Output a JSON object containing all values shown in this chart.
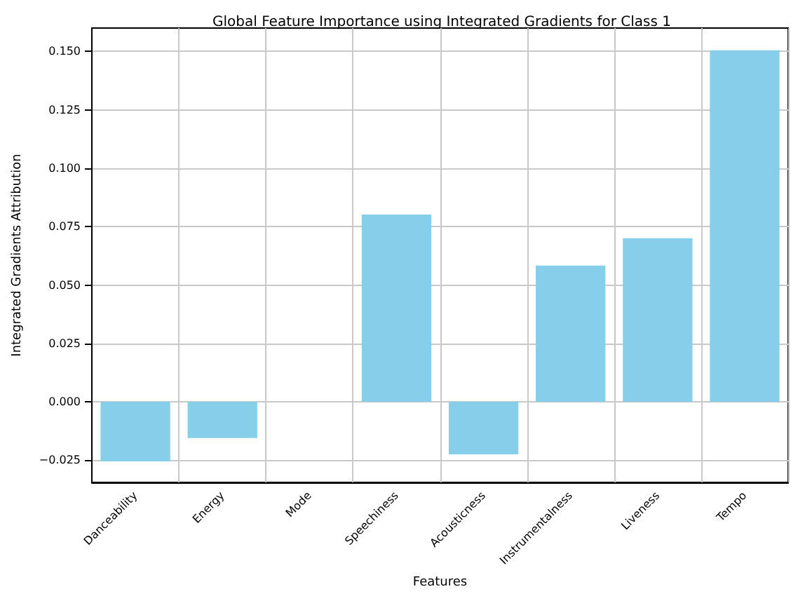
{
  "chart_data": {
    "type": "bar",
    "title": "Global Feature Importance using Integrated Gradients for Class 1",
    "xlabel": "Features",
    "ylabel": "Integrated Gradients Attribution",
    "categories": [
      "Danceability",
      "Energy",
      "Mode",
      "Speechiness",
      "Acousticness",
      "Instrumentalness",
      "Liveness",
      "Tempo"
    ],
    "values": [
      -0.0255,
      -0.0155,
      0.0,
      0.0802,
      -0.0225,
      0.0583,
      0.07,
      0.1505
    ],
    "color": "#87ceeb",
    "ylim": [
      -0.0345,
      0.16
    ],
    "yticks": [
      {
        "value": -0.025,
        "label": "−0.025"
      },
      {
        "value": 0,
        "label": "0.000"
      },
      {
        "value": 0.025,
        "label": "0.025"
      },
      {
        "value": 0.05,
        "label": "0.050"
      },
      {
        "value": 0.075,
        "label": "0.075"
      },
      {
        "value": 0.1,
        "label": "0.100"
      },
      {
        "value": 0.125,
        "label": "0.125"
      },
      {
        "value": 0.15,
        "label": "0.150"
      }
    ],
    "grid": true
  }
}
